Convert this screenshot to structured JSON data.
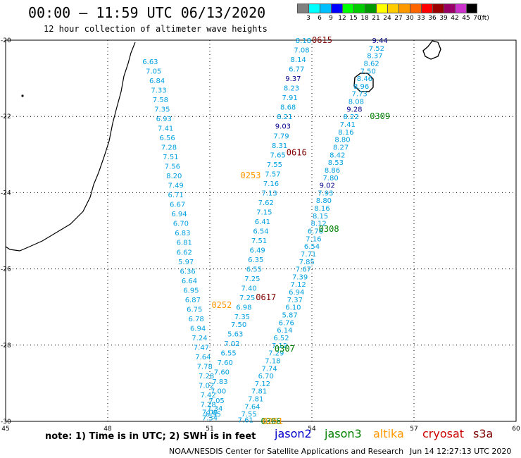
{
  "header": {
    "title": "00:00 – 11:59 UTC 06/13/2020",
    "subtitle": "12 hour collection of altimeter wave heights"
  },
  "color_scale": {
    "labels": [
      "3",
      "6",
      "9",
      "12",
      "15",
      "18",
      "21",
      "24",
      "27",
      "30",
      "33",
      "36",
      "39",
      "42",
      "45",
      "70",
      "(ft)"
    ],
    "colors": [
      "#808080",
      "#00ffff",
      "#00bfff",
      "#0000ff",
      "#00ff00",
      "#00cc00",
      "#009900",
      "#ffff00",
      "#ffcc00",
      "#ff9900",
      "#ff6600",
      "#ff0000",
      "#990000",
      "#990066",
      "#cc33cc",
      "#000000"
    ]
  },
  "axes": {
    "lon_ticks": [
      "45",
      "48",
      "51",
      "54",
      "57",
      "60"
    ],
    "lat_ticks": [
      "-20",
      "-22",
      "-24",
      "-26",
      "-28",
      "-30"
    ],
    "lon_range": [
      45,
      60
    ],
    "lat_range": [
      -30,
      -20
    ]
  },
  "colors": {
    "sample": "#00a0e0",
    "high": "#00008b",
    "jason2": "#0000cc",
    "jason3": "#008000",
    "altika": "#ff9900",
    "cryosat": "#cc0000",
    "s3a": "#800000"
  },
  "tracks": [
    {
      "label": "0253",
      "satellite": "altika",
      "label_pos": {
        "lat": -23.55,
        "lon": 52.2
      },
      "samples": [
        {
          "v": "6.63",
          "lat": -20.55,
          "lon": 49.25
        },
        {
          "v": "7.05",
          "lat": -20.8,
          "lon": 49.35
        },
        {
          "v": "6.84",
          "lat": -21.05,
          "lon": 49.45
        },
        {
          "v": "7.33",
          "lat": -21.3,
          "lon": 49.5
        },
        {
          "v": "7.58",
          "lat": -21.55,
          "lon": 49.55
        },
        {
          "v": "7.35",
          "lat": -21.8,
          "lon": 49.6
        },
        {
          "v": "6.93",
          "lat": -22.05,
          "lon": 49.65
        },
        {
          "v": "7.41",
          "lat": -22.3,
          "lon": 49.7
        },
        {
          "v": "6.56",
          "lat": -22.55,
          "lon": 49.75
        },
        {
          "v": "7.28",
          "lat": -22.8,
          "lon": 49.8
        },
        {
          "v": "7.51",
          "lat": -23.05,
          "lon": 49.85
        },
        {
          "v": "7.56",
          "lat": -23.3,
          "lon": 49.9
        },
        {
          "v": "8.20",
          "lat": -23.55,
          "lon": 49.95
        },
        {
          "v": "7.49",
          "lat": -23.8,
          "lon": 50.0
        },
        {
          "v": "6.71",
          "lat": -24.05,
          "lon": 50.0
        },
        {
          "v": "6.67",
          "lat": -24.3,
          "lon": 50.05
        },
        {
          "v": "6.94",
          "lat": -24.55,
          "lon": 50.1
        },
        {
          "v": "6.70",
          "lat": -24.8,
          "lon": 50.15
        },
        {
          "v": "6.83",
          "lat": -25.05,
          "lon": 50.2
        },
        {
          "v": "6.81",
          "lat": -25.3,
          "lon": 50.25
        },
        {
          "v": "6.62",
          "lat": -25.55,
          "lon": 50.25
        },
        {
          "v": "5.97",
          "lat": -25.8,
          "lon": 50.3
        },
        {
          "v": "6.36",
          "lat": -26.05,
          "lon": 50.35
        },
        {
          "v": "6.64",
          "lat": -26.3,
          "lon": 50.4
        },
        {
          "v": "6.95",
          "lat": -26.55,
          "lon": 50.45
        },
        {
          "v": "6.87",
          "lat": -26.8,
          "lon": 50.5
        },
        {
          "v": "6.75",
          "lat": -27.05,
          "lon": 50.55
        },
        {
          "v": "6.78",
          "lat": -27.3,
          "lon": 50.6
        },
        {
          "v": "6.94",
          "lat": -27.55,
          "lon": 50.65
        },
        {
          "v": "7.24",
          "lat": -27.8,
          "lon": 50.7
        },
        {
          "v": "7.47",
          "lat": -28.05,
          "lon": 50.75
        },
        {
          "v": "7.64",
          "lat": -28.3,
          "lon": 50.8
        },
        {
          "v": "7.78",
          "lat": -28.55,
          "lon": 50.85
        },
        {
          "v": "7.28",
          "lat": -28.8,
          "lon": 50.9
        },
        {
          "v": "7.02",
          "lat": -29.05,
          "lon": 50.9
        },
        {
          "v": "7.42",
          "lat": -29.3,
          "lon": 50.95
        },
        {
          "v": "7.28",
          "lat": -29.55,
          "lon": 50.95
        },
        {
          "v": "7.08",
          "lat": -29.75,
          "lon": 51.0
        },
        {
          "v": "7.34",
          "lat": -29.9,
          "lon": 51.0
        }
      ]
    },
    {
      "label": "0252",
      "satellite": "altika",
      "label_pos": {
        "lat": -26.95,
        "lon": 51.35
      },
      "samples": [
        {
          "v": "8.18",
          "lat": -20.0,
          "lon": 53.75
        },
        {
          "v": "7.08",
          "lat": -20.25,
          "lon": 53.7
        },
        {
          "v": "8.14",
          "lat": -20.5,
          "lon": 53.6
        },
        {
          "v": "6.77",
          "lat": -20.75,
          "lon": 53.55
        },
        {
          "v": "9.37",
          "lat": -21.0,
          "lon": 53.45,
          "hi": true
        },
        {
          "v": "8.23",
          "lat": -21.25,
          "lon": 53.4
        },
        {
          "v": "7.91",
          "lat": -21.5,
          "lon": 53.35
        },
        {
          "v": "8.68",
          "lat": -21.75,
          "lon": 53.3
        },
        {
          "v": "8.21",
          "lat": -22.0,
          "lon": 53.2
        },
        {
          "v": "9.03",
          "lat": -22.25,
          "lon": 53.15,
          "hi": true
        },
        {
          "v": "7.79",
          "lat": -22.5,
          "lon": 53.1
        },
        {
          "v": "8.31",
          "lat": -22.75,
          "lon": 53.05
        },
        {
          "v": "7.65",
          "lat": -23.0,
          "lon": 53.0
        },
        {
          "v": "7.55",
          "lat": -23.25,
          "lon": 52.9
        },
        {
          "v": "7.57",
          "lat": -23.5,
          "lon": 52.85
        },
        {
          "v": "7.16",
          "lat": -23.75,
          "lon": 52.8
        },
        {
          "v": "7.13",
          "lat": -24.0,
          "lon": 52.75
        },
        {
          "v": "7.62",
          "lat": -24.25,
          "lon": 52.65
        },
        {
          "v": "7.15",
          "lat": -24.5,
          "lon": 52.6
        },
        {
          "v": "6.41",
          "lat": -24.75,
          "lon": 52.55
        },
        {
          "v": "6.54",
          "lat": -25.0,
          "lon": 52.5
        },
        {
          "v": "7.51",
          "lat": -25.25,
          "lon": 52.45
        },
        {
          "v": "6.49",
          "lat": -25.5,
          "lon": 52.4
        },
        {
          "v": "6.35",
          "lat": -25.75,
          "lon": 52.35
        },
        {
          "v": "6.55",
          "lat": -26.0,
          "lon": 52.3
        },
        {
          "v": "7.25",
          "lat": -26.25,
          "lon": 52.25
        },
        {
          "v": "7.40",
          "lat": -26.5,
          "lon": 52.15
        },
        {
          "v": "7.25",
          "lat": -26.75,
          "lon": 52.1
        },
        {
          "v": "6.98",
          "lat": -27.0,
          "lon": 52.0
        },
        {
          "v": "7.35",
          "lat": -27.25,
          "lon": 51.95
        },
        {
          "v": "7.50",
          "lat": -27.45,
          "lon": 51.85
        },
        {
          "v": "5.63",
          "lat": -27.7,
          "lon": 51.75
        },
        {
          "v": "7.02",
          "lat": -27.95,
          "lon": 51.65
        },
        {
          "v": "6.55",
          "lat": -28.2,
          "lon": 51.55
        },
        {
          "v": "7.60",
          "lat": -28.45,
          "lon": 51.45
        },
        {
          "v": "7.60",
          "lat": -28.7,
          "lon": 51.35
        },
        {
          "v": "7.83",
          "lat": -28.95,
          "lon": 51.3
        },
        {
          "v": "7.00",
          "lat": -29.2,
          "lon": 51.25
        },
        {
          "v": "7.05",
          "lat": -29.45,
          "lon": 51.2
        },
        {
          "v": "7.34",
          "lat": -29.65,
          "lon": 51.15
        },
        {
          "v": "6.95",
          "lat": -29.8,
          "lon": 51.1
        }
      ]
    },
    {
      "label": "0309",
      "satellite": "jason3",
      "label_pos": {
        "lat": -22.0,
        "lon": 56.0
      },
      "samples": [
        {
          "v": "9.44",
          "lat": -20.0,
          "lon": 56.0,
          "hi": true
        },
        {
          "v": "7.52",
          "lat": -20.2,
          "lon": 55.9
        },
        {
          "v": "8.37",
          "lat": -20.4,
          "lon": 55.85
        },
        {
          "v": "8.62",
          "lat": -20.6,
          "lon": 55.75
        },
        {
          "v": "7.50",
          "lat": -20.8,
          "lon": 55.65
        },
        {
          "v": "8.46",
          "lat": -21.0,
          "lon": 55.55
        },
        {
          "v": "8.96",
          "lat": -21.2,
          "lon": 55.45
        },
        {
          "v": "7.73",
          "lat": -21.4,
          "lon": 55.4
        },
        {
          "v": "8.08",
          "lat": -21.6,
          "lon": 55.3
        },
        {
          "v": "9.28",
          "lat": -21.8,
          "lon": 55.25,
          "hi": true
        },
        {
          "v": "8.22",
          "lat": -22.0,
          "lon": 55.15
        },
        {
          "v": "7.41",
          "lat": -22.2,
          "lon": 55.05
        },
        {
          "v": "8.16",
          "lat": -22.4,
          "lon": 55.0
        },
        {
          "v": "8.80",
          "lat": -22.6,
          "lon": 54.9
        },
        {
          "v": "8.27",
          "lat": -22.8,
          "lon": 54.85
        },
        {
          "v": "8.42",
          "lat": -23.0,
          "lon": 54.75
        },
        {
          "v": "8.53",
          "lat": -23.2,
          "lon": 54.7
        },
        {
          "v": "8.86",
          "lat": -23.4,
          "lon": 54.6
        },
        {
          "v": "7.80",
          "lat": -23.6,
          "lon": 54.55
        },
        {
          "v": "9.02",
          "lat": -23.8,
          "lon": 54.45,
          "hi": true
        },
        {
          "v": "7.93",
          "lat": -24.0,
          "lon": 54.4
        },
        {
          "v": "8.80",
          "lat": -24.2,
          "lon": 54.35
        },
        {
          "v": "8.16",
          "lat": -24.4,
          "lon": 54.3
        },
        {
          "v": "8.15",
          "lat": -24.6,
          "lon": 54.25
        },
        {
          "v": "8.12",
          "lat": -24.8,
          "lon": 54.2
        },
        {
          "v": "6.76",
          "lat": -25.0,
          "lon": 54.1
        },
        {
          "v": "7.16",
          "lat": -25.2,
          "lon": 54.05
        },
        {
          "v": "6.54",
          "lat": -25.4,
          "lon": 54.0
        },
        {
          "v": "7.71",
          "lat": -25.6,
          "lon": 53.9
        },
        {
          "v": "7.85",
          "lat": -25.8,
          "lon": 53.85
        },
        {
          "v": "7.67",
          "lat": -26.0,
          "lon": 53.75
        },
        {
          "v": "7.39",
          "lat": -26.2,
          "lon": 53.65
        },
        {
          "v": "7.12",
          "lat": -26.4,
          "lon": 53.6
        },
        {
          "v": "6.94",
          "lat": -26.6,
          "lon": 53.55
        },
        {
          "v": "7.37",
          "lat": -26.8,
          "lon": 53.5
        },
        {
          "v": "6.10",
          "lat": -27.0,
          "lon": 53.45
        },
        {
          "v": "5.87",
          "lat": -27.2,
          "lon": 53.35
        },
        {
          "v": "6.76",
          "lat": -27.4,
          "lon": 53.25
        },
        {
          "v": "6.14",
          "lat": -27.6,
          "lon": 53.2
        },
        {
          "v": "6.52",
          "lat": -27.8,
          "lon": 53.1
        },
        {
          "v": "7.12",
          "lat": -28.0,
          "lon": 53.05
        },
        {
          "v": "7.29",
          "lat": -28.2,
          "lon": 52.95
        },
        {
          "v": "7.18",
          "lat": -28.4,
          "lon": 52.85
        },
        {
          "v": "7.74",
          "lat": -28.6,
          "lon": 52.75
        },
        {
          "v": "6.70",
          "lat": -28.8,
          "lon": 52.65
        },
        {
          "v": "7.12",
          "lat": -29.0,
          "lon": 52.55
        },
        {
          "v": "7.81",
          "lat": -29.2,
          "lon": 52.45
        },
        {
          "v": "7.81",
          "lat": -29.4,
          "lon": 52.35
        },
        {
          "v": "7.64",
          "lat": -29.6,
          "lon": 52.25
        },
        {
          "v": "7.55",
          "lat": -29.8,
          "lon": 52.15
        },
        {
          "v": "7.61",
          "lat": -29.95,
          "lon": 52.05
        }
      ]
    }
  ],
  "pass_labels": [
    {
      "text": "0615",
      "satellite": "s3a",
      "lat": -20.0,
      "lon": 54.3
    },
    {
      "text": "0616",
      "satellite": "s3a",
      "lat": -22.95,
      "lon": 53.55
    },
    {
      "text": "0308",
      "satellite": "jason3",
      "lat": -24.95,
      "lon": 54.5
    },
    {
      "text": "0617",
      "satellite": "s3a",
      "lat": -26.75,
      "lon": 52.65
    },
    {
      "text": "0307",
      "satellite": "jason3",
      "lat": -28.1,
      "lon": 53.2
    },
    {
      "text": "0306",
      "satellite": "jason3",
      "lat": -30.0,
      "lon": 52.8
    },
    {
      "text": "0251",
      "satellite": "altika",
      "lat": -30.0,
      "lon": 52.85
    }
  ],
  "footer": {
    "note": "note: 1) Time is in UTC; 2) SWH is in feet",
    "missions": [
      {
        "name": "jason2",
        "color_key": "jason2"
      },
      {
        "name": "jason3",
        "color_key": "jason3"
      },
      {
        "name": "altika",
        "color_key": "altika"
      },
      {
        "name": "cryosat",
        "color_key": "cryosat"
      },
      {
        "name": "s3a",
        "color_key": "s3a"
      }
    ],
    "credit": "NOAA/NESDIS Center for Satellite Applications and Research",
    "timestamp": "Jun 14 12:27:13 UTC 2020"
  }
}
